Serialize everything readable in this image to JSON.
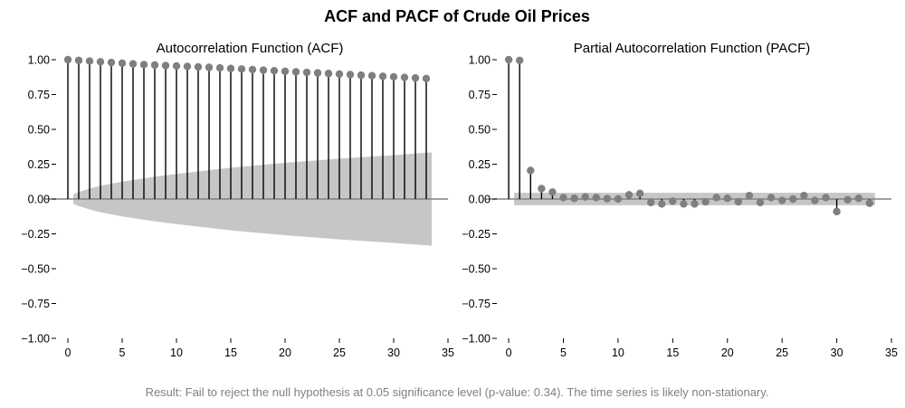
{
  "figure": {
    "title": "ACF and PACF of Crude Oil Prices",
    "note": "Result: Fail to reject the null hypothesis at 0.05 significance level (p-value: 0.34). The time series is likely non-stationary."
  },
  "colors": {
    "stem": "#000000",
    "marker": "#7f7f7f",
    "confidence_band": "#c6c6c6",
    "baseline": "#808080",
    "note_text": "#808080"
  },
  "chart_data": [
    {
      "type": "stem",
      "title": "Autocorrelation Function (ACF)",
      "xlabel": "",
      "ylabel": "",
      "xlim": [
        -1.5,
        35
      ],
      "ylim": [
        -1,
        1
      ],
      "xticks": [
        0,
        5,
        10,
        15,
        20,
        25,
        30,
        35
      ],
      "yticks": [
        -1.0,
        -0.75,
        -0.5,
        -0.25,
        0.0,
        0.25,
        0.5,
        0.75,
        1.0
      ],
      "ytick_labels": [
        "−1.00",
        "−0.75",
        "−0.50",
        "−0.25",
        "0.00",
        "0.25",
        "0.50",
        "0.75",
        "1.00"
      ],
      "xtick_labels": [
        "0",
        "5",
        "10",
        "15",
        "20",
        "25",
        "30",
        "35"
      ],
      "grid": false,
      "lags": [
        0,
        1,
        2,
        3,
        4,
        5,
        6,
        7,
        8,
        9,
        10,
        11,
        12,
        13,
        14,
        15,
        16,
        17,
        18,
        19,
        20,
        21,
        22,
        23,
        24,
        25,
        26,
        27,
        28,
        29,
        30,
        31,
        32,
        33
      ],
      "values": [
        1.0,
        0.995,
        0.99,
        0.985,
        0.98,
        0.975,
        0.97,
        0.965,
        0.962,
        0.958,
        0.955,
        0.952,
        0.948,
        0.945,
        0.941,
        0.937,
        0.933,
        0.929,
        0.925,
        0.921,
        0.917,
        0.913,
        0.909,
        0.905,
        0.901,
        0.897,
        0.893,
        0.889,
        0.885,
        0.881,
        0.877,
        0.873,
        0.869,
        0.865
      ],
      "confidence_interval": {
        "lags": [
          0.5,
          1,
          2,
          3,
          5,
          8,
          10,
          15,
          20,
          25,
          30,
          33.5
        ],
        "upper": [
          0.035,
          0.05,
          0.075,
          0.095,
          0.125,
          0.16,
          0.18,
          0.225,
          0.26,
          0.29,
          0.315,
          0.335
        ],
        "lower": [
          -0.035,
          -0.05,
          -0.075,
          -0.095,
          -0.125,
          -0.16,
          -0.18,
          -0.225,
          -0.26,
          -0.29,
          -0.315,
          -0.335
        ]
      }
    },
    {
      "type": "stem",
      "title": "Partial Autocorrelation Function (PACF)",
      "xlabel": "",
      "ylabel": "",
      "xlim": [
        -1.5,
        35
      ],
      "ylim": [
        -1,
        1
      ],
      "xticks": [
        0,
        5,
        10,
        15,
        20,
        25,
        30,
        35
      ],
      "yticks": [
        -1.0,
        -0.75,
        -0.5,
        -0.25,
        0.0,
        0.25,
        0.5,
        0.75,
        1.0
      ],
      "ytick_labels": [
        "−1.00",
        "−0.75",
        "−0.50",
        "−0.25",
        "0.00",
        "0.25",
        "0.50",
        "0.75",
        "1.00"
      ],
      "xtick_labels": [
        "0",
        "5",
        "10",
        "15",
        "20",
        "25",
        "30",
        "35"
      ],
      "grid": false,
      "lags": [
        0,
        1,
        2,
        3,
        4,
        5,
        6,
        7,
        8,
        9,
        10,
        11,
        12,
        13,
        14,
        15,
        16,
        17,
        18,
        19,
        20,
        21,
        22,
        23,
        24,
        25,
        26,
        27,
        28,
        29,
        30,
        31,
        32,
        33
      ],
      "values": [
        1.0,
        0.995,
        0.205,
        0.075,
        0.05,
        0.01,
        0.005,
        0.015,
        0.01,
        0.002,
        0.0,
        0.03,
        0.04,
        -0.025,
        -0.035,
        -0.015,
        -0.035,
        -0.035,
        -0.02,
        0.01,
        0.005,
        -0.02,
        0.025,
        -0.025,
        0.01,
        -0.01,
        0.0,
        0.025,
        -0.01,
        0.01,
        -0.09,
        -0.005,
        0.005,
        -0.03
      ],
      "confidence_interval": {
        "lags": [
          0.5,
          33.5
        ],
        "upper": [
          0.045,
          0.045
        ],
        "lower": [
          -0.045,
          -0.045
        ]
      }
    }
  ]
}
